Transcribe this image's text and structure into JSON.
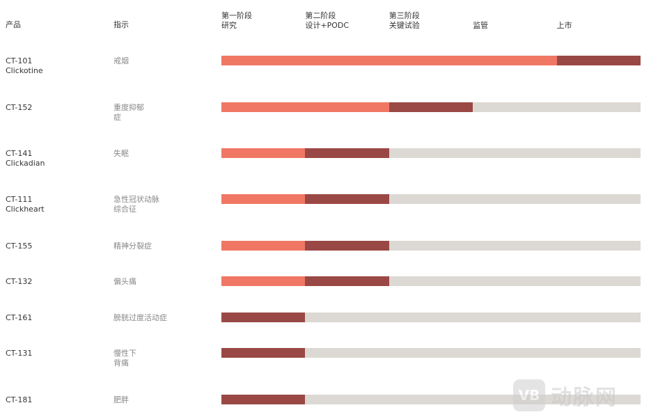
{
  "chart_data": {
    "type": "bar",
    "columns": {
      "product": "产品",
      "indication": "指示"
    },
    "stages": [
      {
        "line1": "第一阶段",
        "line2": "研究"
      },
      {
        "line1": "第二阶段",
        "line2": "设计+PODC"
      },
      {
        "line1": "第三阶段",
        "line2": "关键试验"
      },
      {
        "line1": "",
        "line2": "监管"
      },
      {
        "line1": "",
        "line2": "上市"
      }
    ],
    "rows": [
      {
        "code": "CT-101",
        "name": "Clickotine",
        "indication": [
          "戒烟"
        ],
        "completed": 4,
        "current": 1
      },
      {
        "code": "CT-152",
        "name": "",
        "indication": [
          "重度抑郁",
          "症"
        ],
        "completed": 2,
        "current": 1
      },
      {
        "code": "CT-141",
        "name": "Clickadian",
        "indication": [
          "失眠"
        ],
        "completed": 1,
        "current": 1
      },
      {
        "code": "CT-111",
        "name": "Clickheart",
        "indication": [
          "急性冠状动脉",
          "综合征"
        ],
        "completed": 1,
        "current": 1
      },
      {
        "code": "CT-155",
        "name": "",
        "indication": [
          "精神分裂症"
        ],
        "completed": 1,
        "current": 1
      },
      {
        "code": "CT-132",
        "name": "",
        "indication": [
          "偏头痛"
        ],
        "completed": 1,
        "current": 1
      },
      {
        "code": "CT-161",
        "name": "",
        "indication": [
          "膀胱过度活动症"
        ],
        "completed": 0,
        "current": 1
      },
      {
        "code": "CT-131",
        "name": "",
        "indication": [
          "慢性下",
          "背痛"
        ],
        "completed": 0,
        "current": 1
      },
      {
        "code": "CT-181",
        "name": "",
        "indication": [
          "肥胖"
        ],
        "completed": 0,
        "current": 1
      }
    ],
    "colors": {
      "completed": "#f07763",
      "current": "#9a4845",
      "remaining": "#dcd8d3"
    }
  },
  "watermark": {
    "logo": "VB",
    "text": "动脉网"
  }
}
